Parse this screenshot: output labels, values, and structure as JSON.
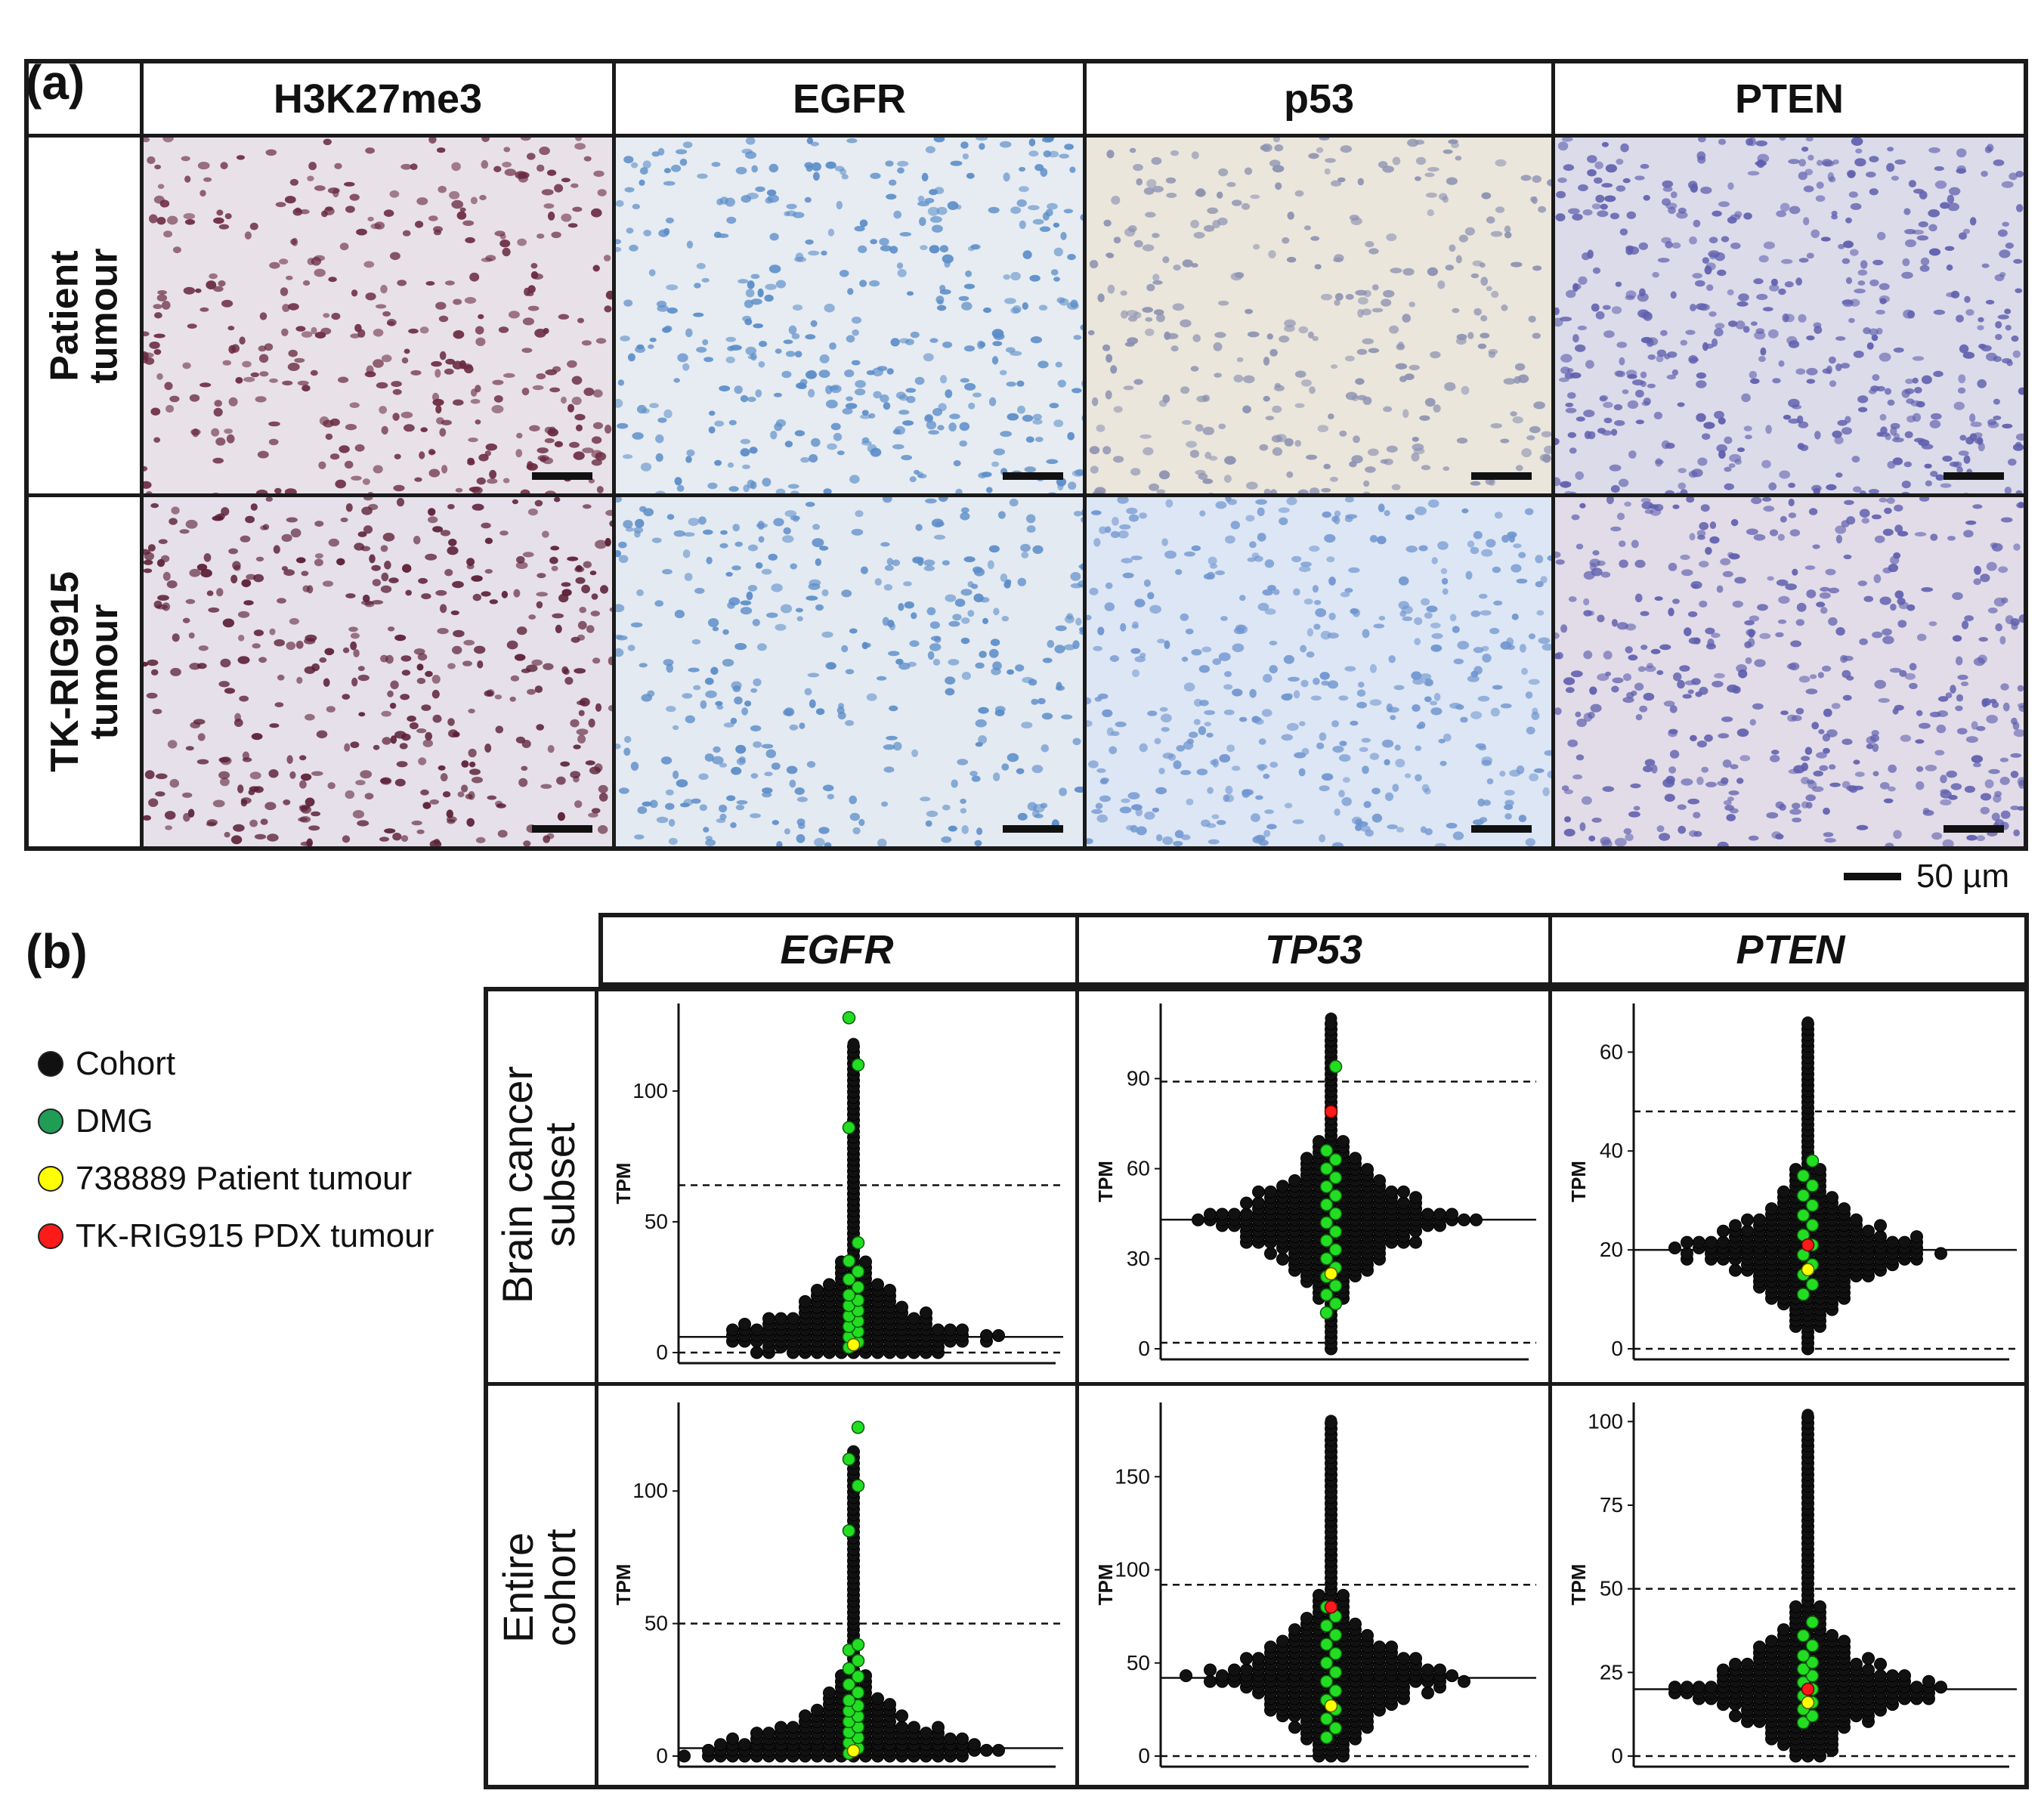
{
  "panel_a": {
    "letter": "(a)",
    "columns": [
      "H3K27me3",
      "EGFR",
      "p53",
      "PTEN"
    ],
    "rows": [
      "Patient\ntumour",
      "TK-RIG915\ntumour"
    ],
    "scale_label": "50 µm",
    "stain_colors": {
      "H3K27me3_patient": "#6a2a40",
      "H3K27me3_pdx": "#5a1e34",
      "EGFR": "#5a8cc8",
      "p53_patient": "#8a90b0",
      "p53_pdx": "#6f95d0",
      "PTEN": "#5f5fae"
    }
  },
  "panel_b": {
    "letter": "(b)",
    "legend": [
      {
        "label": "Cohort",
        "color": "#111111"
      },
      {
        "label": "DMG",
        "color": "#1f9d55"
      },
      {
        "label": "738889 Patient tumour",
        "color": "#ffff00"
      },
      {
        "label": "TK-RIG915 PDX tumour",
        "color": "#ff1a1a"
      }
    ],
    "columns": [
      "EGFR",
      "TP53",
      "PTEN"
    ],
    "rows": [
      "Brain cancer\nsubset",
      "Entire\ncohort"
    ],
    "y_label": "TPM"
  },
  "chart_data": [
    {
      "type": "scatter",
      "gene": "EGFR",
      "subset": "Brain cancer subset",
      "ylabel": "TPM",
      "ylim": [
        0,
        130
      ],
      "yticks": [
        0,
        50,
        100
      ],
      "median": 6,
      "dashed_lines": [
        0,
        64
      ],
      "dmg": [
        2,
        4,
        6,
        8,
        10,
        12,
        14,
        16,
        18,
        20,
        22,
        25,
        28,
        31,
        35,
        42,
        86,
        110,
        128
      ],
      "cohort_max": 118,
      "patient": 3,
      "pdx": null
    },
    {
      "type": "scatter",
      "gene": "TP53",
      "subset": "Brain cancer subset",
      "ylabel": "TPM",
      "ylim": [
        0,
        112
      ],
      "yticks": [
        0,
        30,
        60,
        90
      ],
      "median": 43,
      "dashed_lines": [
        2,
        89
      ],
      "dmg": [
        12,
        15,
        18,
        21,
        24,
        27,
        30,
        33,
        36,
        39,
        42,
        45,
        48,
        51,
        54,
        57,
        60,
        63,
        66,
        94
      ],
      "cohort_max": 110,
      "patient": 25,
      "pdx": 79
    },
    {
      "type": "scatter",
      "gene": "PTEN",
      "subset": "Brain cancer subset",
      "ylabel": "TPM",
      "ylim": [
        0,
        68
      ],
      "yticks": [
        0,
        20,
        40,
        60
      ],
      "median": 20,
      "dashed_lines": [
        0,
        48
      ],
      "dmg": [
        11,
        13,
        15,
        17,
        19,
        21,
        23,
        25,
        27,
        29,
        31,
        33,
        35,
        38
      ],
      "cohort_max": 66,
      "patient": 16,
      "pdx": 21
    },
    {
      "type": "scatter",
      "gene": "EGFR",
      "subset": "Entire cohort",
      "ylabel": "TPM",
      "ylim": [
        0,
        130
      ],
      "yticks": [
        0,
        50,
        100
      ],
      "median": 3,
      "dashed_lines": [
        50
      ],
      "dmg": [
        1,
        3,
        5,
        7,
        9,
        11,
        13,
        15,
        17,
        19,
        21,
        24,
        27,
        30,
        33,
        36,
        40,
        42,
        85,
        102,
        112,
        124
      ],
      "cohort_max": 115,
      "patient": 2,
      "pdx": null
    },
    {
      "type": "scatter",
      "gene": "TP53",
      "subset": "Entire cohort",
      "ylabel": "TPM",
      "ylim": [
        0,
        185
      ],
      "yticks": [
        0,
        50,
        100,
        150
      ],
      "median": 42,
      "dashed_lines": [
        0,
        92
      ],
      "dmg": [
        10,
        15,
        20,
        25,
        30,
        35,
        40,
        45,
        50,
        55,
        60,
        65,
        70,
        75,
        80
      ],
      "cohort_max": 180,
      "patient": 27,
      "pdx": 80
    },
    {
      "type": "scatter",
      "gene": "PTEN",
      "subset": "Entire cohort",
      "ylabel": "TPM",
      "ylim": [
        0,
        103
      ],
      "yticks": [
        0,
        25,
        50,
        75,
        100
      ],
      "median": 20,
      "dashed_lines": [
        0,
        50
      ],
      "dmg": [
        10,
        12,
        14,
        16,
        18,
        20,
        22,
        24,
        26,
        28,
        30,
        33,
        36,
        40
      ],
      "cohort_max": 102,
      "patient": 16,
      "pdx": 20
    }
  ]
}
